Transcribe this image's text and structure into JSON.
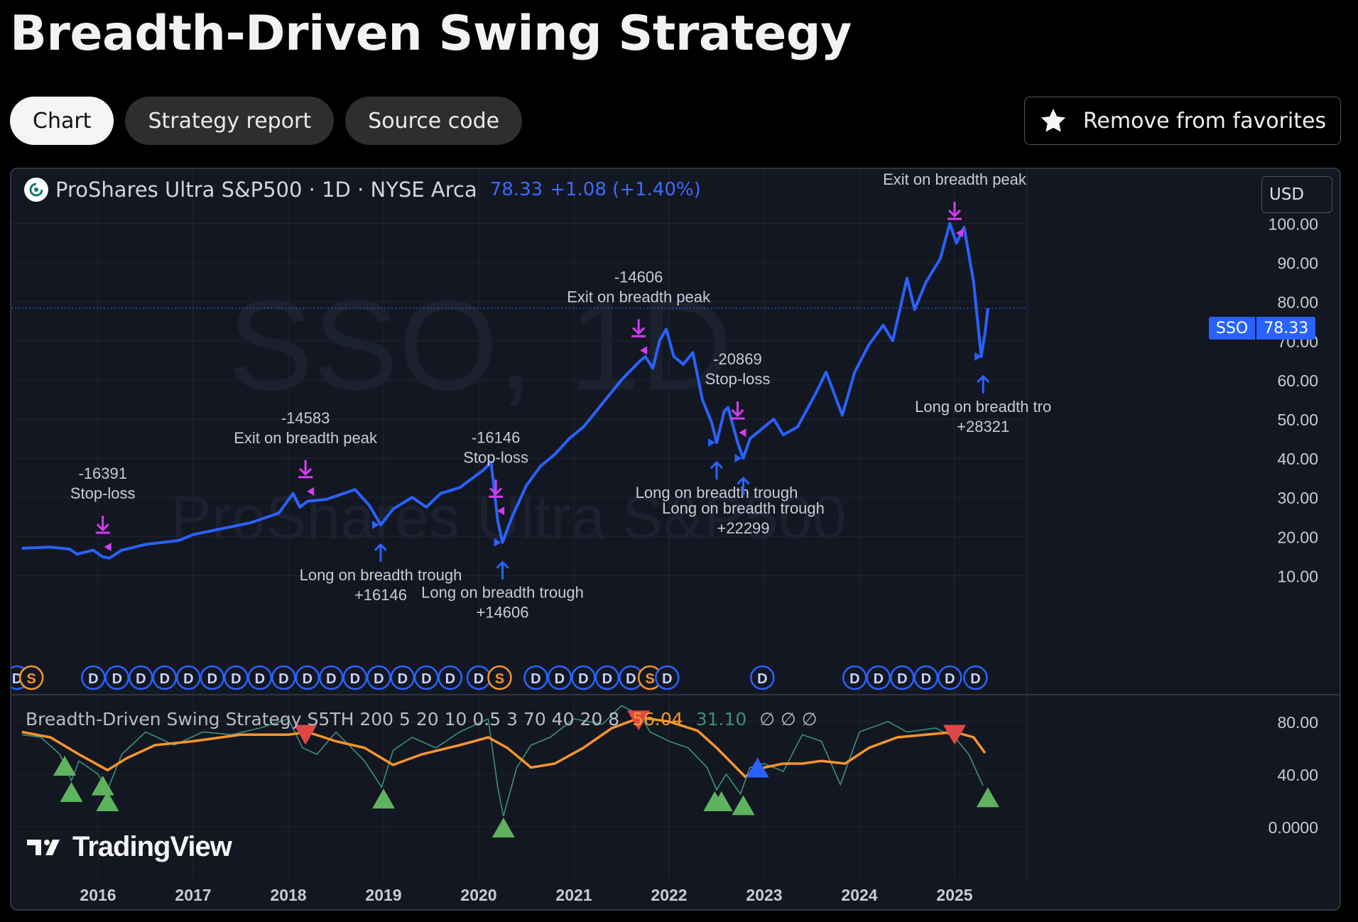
{
  "page": {
    "title": "Breadth-Driven Swing Strategy"
  },
  "tabs": [
    {
      "label": "Chart",
      "active": true
    },
    {
      "label": "Strategy report",
      "active": false
    },
    {
      "label": "Source code",
      "active": false
    }
  ],
  "favorites": {
    "label": "Remove from favorites",
    "icon": "star-icon"
  },
  "symbol": {
    "name": "ProShares Ultra S&P500 · 1D · NYSE Arca",
    "price": "78.33",
    "change": "+1.08 (+1.40%)",
    "currency": "USD",
    "ticker_tag": "SSO",
    "tag_value": "78.33",
    "watermark_ticker": "SSO, 1D",
    "watermark_name": "ProShares Ultra S&P500"
  },
  "indicator": {
    "name": "Breadth-Driven Swing Strategy S5TH 200 5 20 10 0.5 3 70 40 20 8",
    "value_sma": "56.04",
    "value_breadth": "31.10",
    "na_values": "∅ ∅ ∅"
  },
  "branding": {
    "text": "TradingView"
  },
  "colors": {
    "price": "#2962ff",
    "sma": "#f7952b",
    "breadth": "#3b8f80",
    "entry": "#2962ff",
    "exit": "#d43df0",
    "buy_marker": "#5fb35f",
    "sell_marker": "#e04848"
  },
  "chart_data": [
    {
      "type": "line",
      "series": [
        {
          "name": "ProShares Ultra S&P500",
          "color": "#2962ff"
        }
      ],
      "x_ticks": [
        "2016",
        "2017",
        "2018",
        "2019",
        "2020",
        "2021",
        "2022",
        "2023",
        "2024",
        "2025"
      ],
      "y_ticks": [
        "100.00",
        "90.00",
        "80.00",
        "70.00",
        "60.00",
        "50.00",
        "40.00",
        "30.00",
        "20.00",
        "10.00"
      ],
      "ylim": [
        5,
        103
      ],
      "last_price": 78.33,
      "points": [
        [
          2015.2,
          17.0
        ],
        [
          2015.5,
          17.3
        ],
        [
          2015.7,
          16.8
        ],
        [
          2015.78,
          15.5
        ],
        [
          2015.95,
          16.5
        ],
        [
          2016.05,
          14.8
        ],
        [
          2016.12,
          14.5
        ],
        [
          2016.25,
          16.5
        ],
        [
          2016.5,
          18.0
        ],
        [
          2016.85,
          19.0
        ],
        [
          2017.0,
          20.5
        ],
        [
          2017.3,
          22.0
        ],
        [
          2017.6,
          23.5
        ],
        [
          2017.9,
          26.0
        ],
        [
          2018.05,
          31.0
        ],
        [
          2018.12,
          27.5
        ],
        [
          2018.2,
          29.0
        ],
        [
          2018.4,
          29.5
        ],
        [
          2018.7,
          32.0
        ],
        [
          2018.85,
          28.0
        ],
        [
          2018.97,
          23.0
        ],
        [
          2019.1,
          27.0
        ],
        [
          2019.3,
          30.0
        ],
        [
          2019.45,
          27.5
        ],
        [
          2019.6,
          31.0
        ],
        [
          2019.8,
          32.5
        ],
        [
          2020.05,
          37.0
        ],
        [
          2020.13,
          39.0
        ],
        [
          2020.2,
          24.0
        ],
        [
          2020.25,
          18.5
        ],
        [
          2020.35,
          25.0
        ],
        [
          2020.5,
          33.0
        ],
        [
          2020.65,
          38.0
        ],
        [
          2020.8,
          41.0
        ],
        [
          2020.95,
          45.0
        ],
        [
          2021.1,
          48.0
        ],
        [
          2021.3,
          54.0
        ],
        [
          2021.5,
          60.0
        ],
        [
          2021.7,
          65.0
        ],
        [
          2021.75,
          66.0
        ],
        [
          2021.83,
          63.0
        ],
        [
          2021.9,
          70.0
        ],
        [
          2021.97,
          73.0
        ],
        [
          2022.05,
          66.0
        ],
        [
          2022.15,
          64.0
        ],
        [
          2022.25,
          67.0
        ],
        [
          2022.35,
          55.0
        ],
        [
          2022.45,
          49.0
        ],
        [
          2022.5,
          44.0
        ],
        [
          2022.58,
          52.0
        ],
        [
          2022.62,
          53.0
        ],
        [
          2022.72,
          44.0
        ],
        [
          2022.78,
          40.0
        ],
        [
          2022.85,
          45.0
        ],
        [
          2022.95,
          47.0
        ],
        [
          2023.1,
          50.0
        ],
        [
          2023.2,
          46.0
        ],
        [
          2023.35,
          48.0
        ],
        [
          2023.55,
          57.0
        ],
        [
          2023.65,
          62.0
        ],
        [
          2023.82,
          51.0
        ],
        [
          2023.95,
          62.0
        ],
        [
          2024.1,
          69.0
        ],
        [
          2024.25,
          74.0
        ],
        [
          2024.35,
          70.0
        ],
        [
          2024.5,
          86.0
        ],
        [
          2024.58,
          78.0
        ],
        [
          2024.7,
          85.0
        ],
        [
          2024.85,
          91.0
        ],
        [
          2024.95,
          100.0
        ],
        [
          2025.02,
          95.0
        ],
        [
          2025.1,
          99.0
        ],
        [
          2025.2,
          85.0
        ],
        [
          2025.28,
          66.0
        ],
        [
          2025.32,
          72.0
        ],
        [
          2025.35,
          78.33
        ]
      ],
      "annotations": [
        {
          "kind": "exit",
          "x": 2016.05,
          "label": "-16391",
          "label2": "Stop-loss"
        },
        {
          "kind": "exit",
          "x": 2018.18,
          "label": "-14583",
          "label2": "Exit on breadth peak"
        },
        {
          "kind": "exit",
          "x": 2020.18,
          "label": "-16146",
          "label2": "Stop-loss"
        },
        {
          "kind": "exit",
          "x": 2021.68,
          "label": "-14606",
          "label2": "Exit on breadth peak"
        },
        {
          "kind": "exit",
          "x": 2022.72,
          "label": "-20869",
          "label2": "Stop-loss"
        },
        {
          "kind": "exit",
          "x": 2025.0,
          "label": "",
          "label2": "Exit on breadth peak"
        },
        {
          "kind": "entry",
          "x": 2018.97,
          "label": "Long on breadth trough",
          "label2": "+16146"
        },
        {
          "kind": "entry",
          "x": 2020.25,
          "label": "Long on breadth trough",
          "label2": "+14606"
        },
        {
          "kind": "entry",
          "x": 2022.5,
          "label": "Long on breadth trough",
          "label2": ""
        },
        {
          "kind": "entry",
          "x": 2022.78,
          "label": "Long on breadth trough",
          "label2": "+22299"
        },
        {
          "kind": "entry",
          "x": 2025.3,
          "label": "Long on breadth tro",
          "label2": "+28321"
        }
      ],
      "events": [
        "D",
        "S",
        "D",
        "D",
        "D",
        "D",
        "D",
        "D",
        "D",
        "D",
        "D",
        "D",
        "D",
        "D",
        "D",
        "D",
        "D",
        "D",
        "D",
        "S",
        "D",
        "D",
        "D",
        "D",
        "D",
        "S",
        "D",
        "D",
        "D",
        "D",
        "D",
        "D",
        "D",
        "D"
      ],
      "event_x": [
        2015.15,
        2015.3,
        2015.95,
        2016.2,
        2016.45,
        2016.7,
        2016.95,
        2017.2,
        2017.45,
        2017.7,
        2017.95,
        2018.2,
        2018.45,
        2018.7,
        2018.95,
        2019.2,
        2019.45,
        2019.7,
        2020.0,
        2020.22,
        2020.6,
        2020.85,
        2021.1,
        2021.35,
        2021.6,
        2021.8,
        2021.98,
        2022.98,
        2023.95,
        2024.2,
        2024.45,
        2024.7,
        2024.95,
        2025.22
      ]
    },
    {
      "type": "line",
      "series": [
        {
          "name": "",
          "color": "#f7952b"
        },
        {
          "name": "",
          "color": "#3b8f80"
        }
      ],
      "y_ticks": [
        "80.00",
        "40.00",
        "0.0000"
      ],
      "ylim": [
        -5,
        95
      ],
      "sma": [
        [
          2015.2,
          72
        ],
        [
          2015.5,
          68
        ],
        [
          2015.8,
          55
        ],
        [
          2016.1,
          43
        ],
        [
          2016.3,
          52
        ],
        [
          2016.6,
          62
        ],
        [
          2017.0,
          65
        ],
        [
          2017.5,
          70
        ],
        [
          2018.0,
          70
        ],
        [
          2018.2,
          72
        ],
        [
          2018.5,
          65
        ],
        [
          2018.8,
          60
        ],
        [
          2019.1,
          47
        ],
        [
          2019.4,
          55
        ],
        [
          2019.8,
          62
        ],
        [
          2020.1,
          68
        ],
        [
          2020.3,
          60
        ],
        [
          2020.55,
          45
        ],
        [
          2020.8,
          48
        ],
        [
          2021.1,
          60
        ],
        [
          2021.4,
          75
        ],
        [
          2021.7,
          83
        ],
        [
          2022.0,
          80
        ],
        [
          2022.3,
          73
        ],
        [
          2022.5,
          60
        ],
        [
          2022.8,
          38
        ],
        [
          2023.0,
          45
        ],
        [
          2023.2,
          48
        ],
        [
          2023.4,
          48
        ],
        [
          2023.6,
          50
        ],
        [
          2023.85,
          48
        ],
        [
          2024.1,
          60
        ],
        [
          2024.4,
          68
        ],
        [
          2024.7,
          70
        ],
        [
          2025.0,
          72
        ],
        [
          2025.2,
          68
        ],
        [
          2025.32,
          56
        ]
      ],
      "breadth": [
        [
          2015.2,
          70
        ],
        [
          2015.4,
          68
        ],
        [
          2015.6,
          55
        ],
        [
          2015.72,
          35
        ],
        [
          2015.8,
          50
        ],
        [
          2016.0,
          40
        ],
        [
          2016.1,
          28
        ],
        [
          2016.25,
          55
        ],
        [
          2016.5,
          72
        ],
        [
          2016.8,
          62
        ],
        [
          2017.1,
          72
        ],
        [
          2017.4,
          70
        ],
        [
          2017.7,
          75
        ],
        [
          2018.0,
          82
        ],
        [
          2018.15,
          60
        ],
        [
          2018.3,
          55
        ],
        [
          2018.5,
          72
        ],
        [
          2018.8,
          50
        ],
        [
          2018.98,
          30
        ],
        [
          2019.1,
          58
        ],
        [
          2019.3,
          68
        ],
        [
          2019.55,
          60
        ],
        [
          2019.8,
          72
        ],
        [
          2020.1,
          82
        ],
        [
          2020.2,
          30
        ],
        [
          2020.26,
          8
        ],
        [
          2020.4,
          45
        ],
        [
          2020.55,
          62
        ],
        [
          2020.75,
          68
        ],
        [
          2021.0,
          82
        ],
        [
          2021.3,
          78
        ],
        [
          2021.5,
          92
        ],
        [
          2021.7,
          85
        ],
        [
          2021.8,
          72
        ],
        [
          2022.0,
          65
        ],
        [
          2022.2,
          60
        ],
        [
          2022.4,
          45
        ],
        [
          2022.5,
          28
        ],
        [
          2022.6,
          40
        ],
        [
          2022.75,
          25
        ],
        [
          2022.85,
          45
        ],
        [
          2023.0,
          48
        ],
        [
          2023.2,
          42
        ],
        [
          2023.4,
          70
        ],
        [
          2023.6,
          65
        ],
        [
          2023.8,
          32
        ],
        [
          2024.0,
          72
        ],
        [
          2024.3,
          80
        ],
        [
          2024.5,
          72
        ],
        [
          2024.8,
          75
        ],
        [
          2025.0,
          68
        ],
        [
          2025.15,
          55
        ],
        [
          2025.3,
          31
        ]
      ],
      "buy_markers": [
        2015.65,
        2015.72,
        2016.05,
        2016.1,
        2019.0,
        2020.26,
        2022.48,
        2022.55,
        2022.78
      ],
      "sell_markers": [
        2018.18,
        2021.68,
        2025.0
      ],
      "neutral_buy": [
        2022.93
      ],
      "buy_last": [
        2025.35
      ]
    }
  ]
}
